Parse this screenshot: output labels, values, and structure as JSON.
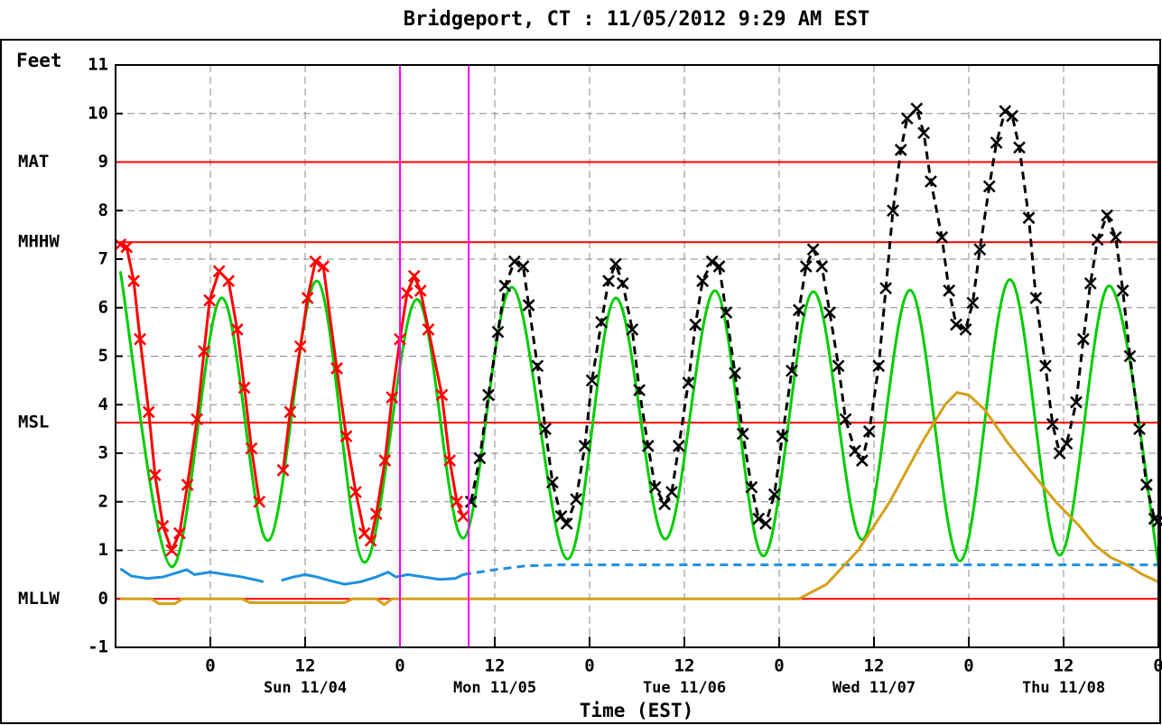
{
  "chart_data": {
    "type": "line",
    "title": "Bridgeport, CT : 11/05/2012 9:29 AM EST",
    "y_label": "Feet",
    "x_label": "Time (EST)",
    "xlim": [
      0,
      132
    ],
    "ylim": [
      -1,
      11
    ],
    "yticks": [
      -1,
      0,
      1,
      2,
      3,
      4,
      5,
      6,
      7,
      8,
      9,
      10,
      11
    ],
    "xticks": [
      {
        "value": 12,
        "label": "0"
      },
      {
        "value": 24,
        "label": "12"
      },
      {
        "value": 36,
        "label": "0"
      },
      {
        "value": 48,
        "label": "12"
      },
      {
        "value": 60,
        "label": "0"
      },
      {
        "value": 72,
        "label": "12"
      },
      {
        "value": 84,
        "label": "0"
      },
      {
        "value": 96,
        "label": "12"
      },
      {
        "value": 108,
        "label": "0"
      },
      {
        "value": 120,
        "label": "12"
      },
      {
        "value": 132,
        "label": "0"
      }
    ],
    "day_labels": [
      {
        "value": 24,
        "label": "Sun 11/04"
      },
      {
        "value": 48,
        "label": "Mon 11/05"
      },
      {
        "value": 72,
        "label": "Tue 11/06"
      },
      {
        "value": 96,
        "label": "Wed 11/07"
      },
      {
        "value": 120,
        "label": "Thu 11/08"
      }
    ],
    "grid": true,
    "datums": [
      {
        "label": "MAT",
        "value": 9
      },
      {
        "label": "MHHW",
        "value": 7.35
      },
      {
        "label": "MSL",
        "value": 3.63
      },
      {
        "label": "MLLW",
        "value": 0
      }
    ],
    "datum_color": "#ff0000",
    "markers": [
      36.0,
      44.7
    ],
    "marker_color": "#ff00ff",
    "series": [
      {
        "color": "#00cc00",
        "dash": false,
        "smooth": true,
        "marker": false,
        "x": [
          0.6,
          7.1,
          13.4,
          19.3,
          25.5,
          31.5,
          38.1,
          44.0,
          50.2,
          57.2,
          63.3,
          69.6,
          75.9,
          82.0,
          88.3,
          94.5,
          100.6,
          106.9,
          113.2,
          119.5,
          125.8,
          132
        ],
        "values": [
          6.75,
          0.66,
          6.2,
          1.2,
          6.55,
          0.75,
          6.17,
          1.25,
          6.42,
          0.82,
          6.2,
          1.23,
          6.35,
          0.88,
          6.33,
          1.22,
          6.36,
          0.78,
          6.58,
          0.9,
          6.45,
          0.72
        ]
      },
      {
        "color": "#1e90e0",
        "dash": false,
        "smooth": false,
        "marker": false,
        "x": [
          0.6,
          2,
          4,
          6,
          8,
          9,
          10,
          12,
          14,
          16,
          18,
          18.7,
          19.7,
          21,
          22.5,
          24,
          25.5,
          27,
          29,
          31,
          33,
          34.5,
          35.5,
          37,
          39,
          41,
          43,
          44
        ],
        "values": [
          0.62,
          0.47,
          0.42,
          0.45,
          0.55,
          0.6,
          0.5,
          0.55,
          0.5,
          0.45,
          0.38,
          0.35,
          null,
          0.38,
          0.45,
          0.5,
          0.45,
          0.38,
          0.3,
          0.35,
          0.45,
          0.55,
          0.45,
          0.5,
          0.45,
          0.4,
          0.42,
          0.5
        ]
      },
      {
        "color": "#1e90e0",
        "dash": true,
        "smooth": false,
        "marker": false,
        "x": [
          44,
          48,
          52,
          56,
          132
        ],
        "values": [
          0.5,
          0.6,
          0.68,
          0.7,
          0.7
        ]
      },
      {
        "color": "#d4a017",
        "dash": false,
        "smooth": false,
        "marker": false,
        "x": [
          0.6,
          4.5,
          5.5,
          7.5,
          8.5,
          16,
          17,
          29,
          30,
          33,
          34,
          35,
          44,
          86.5,
          90,
          94,
          98,
          102,
          105,
          106.5,
          108,
          110,
          113,
          116,
          119,
          122,
          124,
          126,
          128,
          130,
          132
        ],
        "values": [
          0,
          0,
          -0.1,
          -0.1,
          0,
          0,
          -0.08,
          -0.08,
          0,
          0,
          -0.12,
          0,
          0,
          0,
          0.3,
          1.0,
          2.0,
          3.2,
          4.0,
          4.25,
          4.2,
          3.9,
          3.2,
          2.6,
          2.0,
          1.5,
          1.1,
          0.85,
          0.7,
          0.5,
          0.35
        ]
      },
      {
        "color": "#ff0000",
        "dash": false,
        "smooth": false,
        "marker": true,
        "x": [
          0.6,
          1.4,
          2.3,
          3.1,
          4.2,
          5.0,
          6.0,
          7.1,
          8.1,
          9.1,
          10.3,
          11.2,
          11.9,
          13.1,
          14.3,
          15.4,
          16.3,
          17.2,
          18.2,
          19.7,
          21.2,
          22.1,
          23.4,
          24.3,
          25.3,
          26.3,
          28.0,
          29.2,
          30.4,
          31.5,
          32.3,
          33.0,
          34.1,
          35.0,
          36.0,
          36.9,
          37.8,
          38.6,
          39.6,
          41.3,
          42.3,
          43.2,
          44.0
        ],
        "values": [
          7.3,
          7.25,
          6.55,
          5.35,
          3.85,
          2.55,
          1.5,
          1.0,
          1.35,
          2.35,
          3.7,
          5.1,
          6.15,
          6.75,
          6.55,
          5.55,
          4.35,
          3.1,
          2.0,
          null,
          2.65,
          3.85,
          5.2,
          6.2,
          6.95,
          6.85,
          4.75,
          3.35,
          2.2,
          1.35,
          1.2,
          1.75,
          2.85,
          4.15,
          5.35,
          6.3,
          6.65,
          6.35,
          5.55,
          4.2,
          2.85,
          2.0,
          1.7
        ]
      },
      {
        "color": "#000000",
        "dash": true,
        "smooth": false,
        "marker": true,
        "x": [
          45.0,
          46.1,
          47.2,
          48.4,
          49.3,
          50.5,
          51.6,
          52.3,
          53.4,
          54.4,
          55.3,
          56.4,
          57.1,
          58.3,
          59.4,
          60.3,
          61.5,
          62.4,
          63.3,
          64.2,
          65.4,
          66.3,
          67.4,
          68.3,
          69.5,
          70.4,
          71.3,
          72.5,
          73.4,
          74.3,
          75.5,
          76.4,
          77.3,
          78.4,
          79.4,
          80.5,
          81.4,
          82.3,
          83.4,
          84.4,
          85.6,
          86.5,
          87.4,
          88.3,
          89.4,
          90.4,
          91.5,
          92.4,
          93.6,
          94.5,
          95.4,
          96.6,
          97.5,
          98.4,
          99.4,
          100.2,
          101.4,
          102.3,
          103.2,
          104.6,
          105.5,
          106.4,
          107.6,
          108.5,
          109.4,
          110.6,
          111.5,
          112.6,
          113.5,
          114.4,
          115.6,
          116.5,
          117.7,
          118.6,
          119.5,
          120.4,
          121.6,
          122.5,
          123.4,
          124.3,
          125.5,
          126.6,
          127.5,
          128.4,
          129.6,
          130.5,
          131.5,
          132
        ],
        "values": [
          2.0,
          2.9,
          4.2,
          5.5,
          6.45,
          6.95,
          6.85,
          6.05,
          4.8,
          3.5,
          2.4,
          1.7,
          1.55,
          2.05,
          3.15,
          4.5,
          5.7,
          6.55,
          6.9,
          6.5,
          5.55,
          4.3,
          3.15,
          2.3,
          1.95,
          2.2,
          3.15,
          4.45,
          5.65,
          6.55,
          6.95,
          6.85,
          5.9,
          4.65,
          3.4,
          2.3,
          1.65,
          1.55,
          2.15,
          3.35,
          4.7,
          5.95,
          6.85,
          7.2,
          6.85,
          5.9,
          4.8,
          3.7,
          3.05,
          2.85,
          3.45,
          4.8,
          6.4,
          8.0,
          9.25,
          9.9,
          10.1,
          9.6,
          8.6,
          7.45,
          6.35,
          5.65,
          5.55,
          6.1,
          7.2,
          8.5,
          9.4,
          10.05,
          9.95,
          9.3,
          7.85,
          6.2,
          4.8,
          3.6,
          3.0,
          3.2,
          4.05,
          5.35,
          6.5,
          7.4,
          7.9,
          7.45,
          6.35,
          5.0,
          3.5,
          2.35,
          1.65,
          1.6
        ]
      }
    ]
  }
}
